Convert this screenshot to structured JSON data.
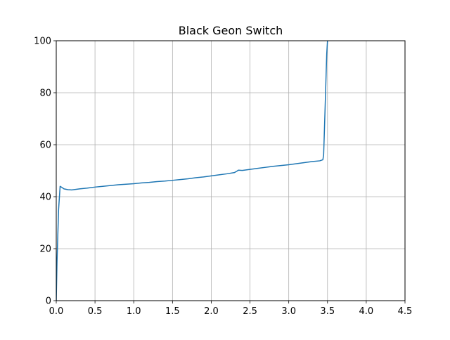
{
  "chart_data": {
    "type": "line",
    "title": "Black Geon Switch",
    "xlabel": "",
    "ylabel": "",
    "xlim": [
      0,
      4.5
    ],
    "ylim": [
      0,
      100
    ],
    "x_ticks": [
      "0.0",
      "0.5",
      "1.0",
      "1.5",
      "2.0",
      "2.5",
      "3.0",
      "3.5",
      "4.0",
      "4.5"
    ],
    "y_ticks": [
      "0",
      "20",
      "40",
      "60",
      "80",
      "100"
    ],
    "grid": true,
    "legend": "none",
    "series": [
      {
        "color": "#1f77b4",
        "x": [
          0.0,
          0.01,
          0.03,
          0.05,
          0.07,
          0.1,
          0.15,
          0.2,
          0.25,
          0.3,
          0.4,
          0.5,
          0.6,
          0.7,
          0.8,
          0.9,
          1.0,
          1.1,
          1.2,
          1.3,
          1.4,
          1.5,
          1.6,
          1.7,
          1.8,
          1.9,
          2.0,
          2.1,
          2.2,
          2.3,
          2.33,
          2.35,
          2.4,
          2.5,
          2.6,
          2.7,
          2.8,
          2.9,
          3.0,
          3.1,
          3.2,
          3.3,
          3.4,
          3.44,
          3.45,
          3.47,
          3.49,
          3.5
        ],
        "y": [
          0.0,
          15.0,
          35.0,
          44.0,
          43.6,
          43.0,
          42.7,
          42.6,
          42.8,
          43.0,
          43.3,
          43.7,
          44.0,
          44.3,
          44.6,
          44.8,
          45.0,
          45.3,
          45.5,
          45.8,
          46.0,
          46.3,
          46.6,
          46.9,
          47.3,
          47.6,
          48.0,
          48.4,
          48.8,
          49.3,
          49.8,
          50.2,
          50.1,
          50.5,
          50.9,
          51.3,
          51.7,
          52.0,
          52.3,
          52.7,
          53.1,
          53.5,
          53.8,
          54.2,
          56.0,
          75.0,
          95.0,
          100.0
        ]
      }
    ]
  }
}
